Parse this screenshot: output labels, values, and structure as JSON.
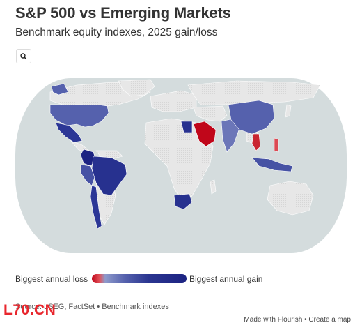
{
  "header": {
    "title": "S&P 500 vs Emerging Markets",
    "subtitle": "Benchmark equity indexes, 2025 gain/loss"
  },
  "controls": {
    "search_icon": "search-icon"
  },
  "map": {
    "projection": "Robinson-style world",
    "colors": {
      "ocean": "#d4dcdd",
      "no_data_land": "#e6e6e6",
      "biggest_loss": "#c0061a",
      "mid_gain": "#5561ad",
      "biggest_gain": "#1c2382"
    },
    "regions": [
      {
        "name": "United States",
        "level": "mid-gain"
      },
      {
        "name": "Mexico",
        "level": "high-gain"
      },
      {
        "name": "Colombia",
        "level": "biggest-gain"
      },
      {
        "name": "Peru",
        "level": "mid-gain"
      },
      {
        "name": "Brazil",
        "level": "high-gain"
      },
      {
        "name": "Chile",
        "level": "high-gain"
      },
      {
        "name": "Egypt",
        "level": "high-gain"
      },
      {
        "name": "Saudi Arabia",
        "level": "biggest-loss"
      },
      {
        "name": "India",
        "level": "low-gain"
      },
      {
        "name": "China",
        "level": "mid-gain"
      },
      {
        "name": "Thailand",
        "level": "loss"
      },
      {
        "name": "Philippines",
        "level": "loss"
      },
      {
        "name": "Indonesia",
        "level": "mid-gain"
      },
      {
        "name": "South Africa",
        "level": "high-gain"
      }
    ]
  },
  "legend": {
    "low_label": "Biggest annual loss",
    "high_label": "Biggest annual gain"
  },
  "footer": {
    "source": "Source: LSEG, FactSet • Benchmark indexes",
    "credit": "Made with Flourish • Create a map",
    "watermark": "L70.CN"
  }
}
